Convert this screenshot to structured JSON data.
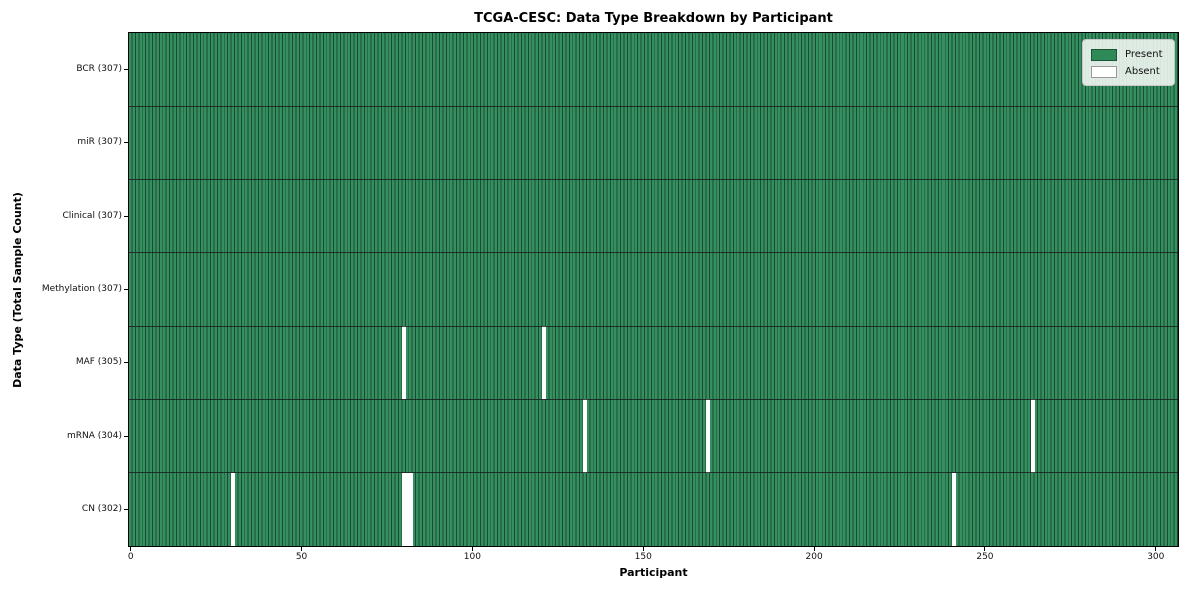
{
  "chart_data": {
    "type": "heatmap",
    "title": "TCGA-CESC: Data Type Breakdown by Participant",
    "xlabel": "Participant",
    "ylabel": "Data Type (Total Sample Count)",
    "n_participants": 307,
    "x_ticks": [
      0,
      50,
      100,
      150,
      200,
      250,
      300
    ],
    "x_range": [
      -0.5,
      306.5
    ],
    "grid": false,
    "legend_position": "upper right",
    "rows": [
      {
        "name": "BCR",
        "label": "BCR (307)",
        "total": 307,
        "absent_participants": []
      },
      {
        "name": "miR",
        "label": "miR (307)",
        "total": 307,
        "absent_participants": []
      },
      {
        "name": "Clinical",
        "label": "Clinical (307)",
        "total": 307,
        "absent_participants": []
      },
      {
        "name": "Methylation",
        "label": "Methylation (307)",
        "total": 307,
        "absent_participants": []
      },
      {
        "name": "MAF",
        "label": "MAF (305)",
        "total": 305,
        "absent_participants": [
          80,
          121
        ]
      },
      {
        "name": "mRNA",
        "label": "mRNA (304)",
        "total": 304,
        "absent_participants": [
          133,
          169,
          264
        ]
      },
      {
        "name": "CN",
        "label": "CN (302)",
        "total": 302,
        "absent_participants": [
          30,
          80,
          81,
          82,
          241
        ]
      }
    ],
    "legend": [
      {
        "label": "Present",
        "color": "#2e8b57"
      },
      {
        "label": "Absent",
        "color": "#ffffff"
      }
    ],
    "colors": {
      "present": "#349061",
      "bar_edge": "#1c4a30",
      "absent": "#ffffff",
      "row_divider": "#1a1a1a",
      "legend_border": "#c8c8c8",
      "axis": "#000000"
    }
  }
}
